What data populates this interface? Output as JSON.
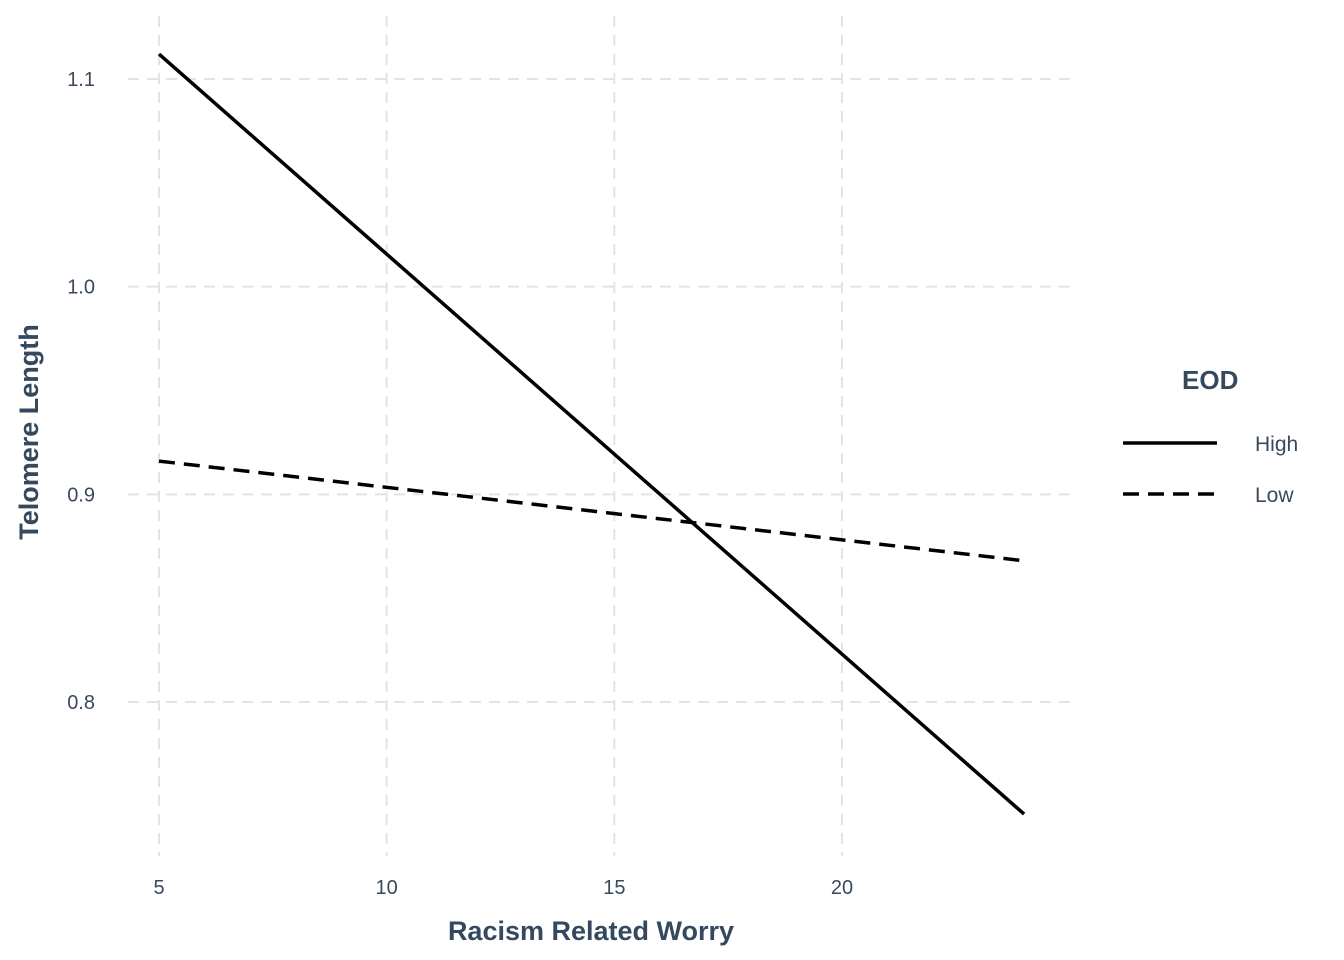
{
  "chart_data": {
    "type": "line",
    "title": "",
    "xlabel": "Racism Related Worry",
    "ylabel": "Telomere Length",
    "xlim": [
      5,
      24
    ],
    "ylim": [
      0.725,
      1.125
    ],
    "x_ticks": [
      5,
      10,
      15,
      20
    ],
    "x_tick_labels": [
      "5",
      "10",
      "15",
      "20"
    ],
    "y_ticks": [
      0.8,
      0.9,
      1.0,
      1.1
    ],
    "y_tick_labels": [
      "0.8",
      "0.9",
      "1.0",
      "1.1"
    ],
    "grid": true,
    "legend": {
      "title": "EOD",
      "position": "right"
    },
    "series": [
      {
        "name": "High",
        "line_style": "solid",
        "color": "#000000",
        "x": [
          5,
          24
        ],
        "y": [
          1.112,
          0.746
        ]
      },
      {
        "name": "Low",
        "line_style": "dashed",
        "color": "#000000",
        "x": [
          5,
          24
        ],
        "y": [
          0.916,
          0.868
        ]
      }
    ]
  }
}
